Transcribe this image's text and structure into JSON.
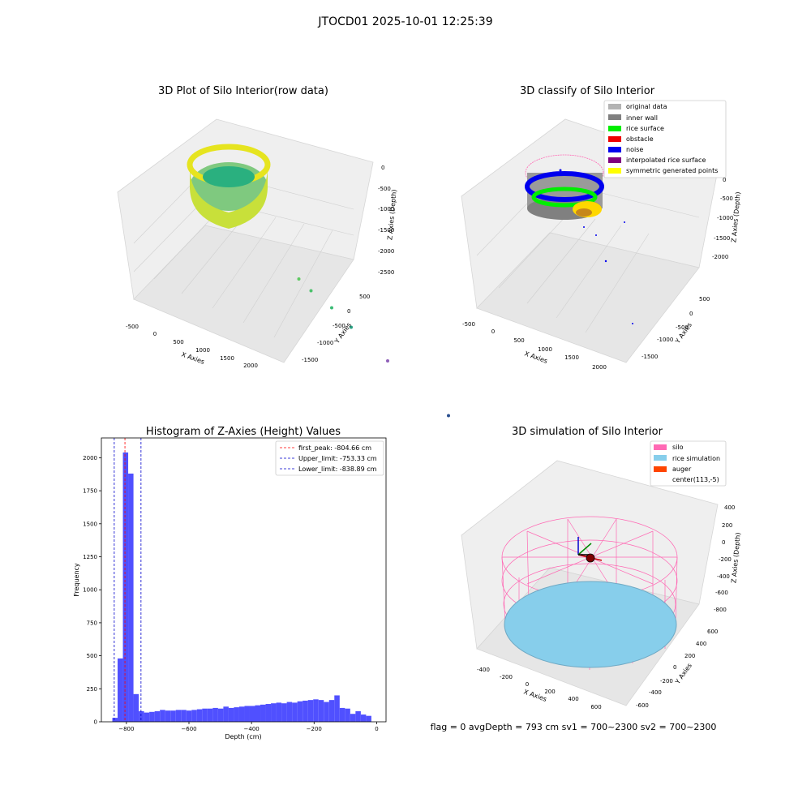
{
  "figure": {
    "suptitle": "JTOCD01 2025-10-01 12:25:39",
    "footer": "flag = 0     avgDepth = 793 cm  sv1 = 700~2300  sv2 = 700~2300"
  },
  "colors": {
    "original": "#b3b3b3",
    "inner_wall": "#808080",
    "rice_surface": "#00ee00",
    "obstacle": "#ee0000",
    "noise": "#0000ee",
    "interpolated": "#800080",
    "symmetric": "#ffff00",
    "hist_bar": "#5050ff",
    "silo": "#ff69b4",
    "rice_sim": "#87ceeb",
    "auger": "#ff4500"
  },
  "chart_data": [
    {
      "type": "scatter",
      "title": "3D Plot of Silo Interior(row data)",
      "xlabel": "X Axies",
      "ylabel": "Y Axies",
      "zlabel": "Z Axies (Depth)",
      "xticks": [
        "-500",
        "0",
        "500",
        "1000",
        "1500",
        "2000"
      ],
      "yticks": [
        "500",
        "0",
        "-500",
        "-1000",
        "-1500"
      ],
      "zticks": [
        "0",
        "-500",
        "-1000",
        "-1500",
        "-2000",
        "-2500"
      ],
      "grid": true,
      "points": [
        {
          "x": 1000,
          "y": 50,
          "z": -1080
        },
        {
          "x": 950,
          "y": -150,
          "z": -1150
        },
        {
          "x": 1000,
          "y": -400,
          "z": -1250
        },
        {
          "x": 1100,
          "y": -600,
          "z": -1450
        },
        {
          "x": 1400,
          "y": -900,
          "z": -1800
        },
        {
          "x": 1900,
          "y": -1400,
          "z": -2350
        }
      ]
    },
    {
      "type": "scatter",
      "title": "3D classify of Silo Interior",
      "xlabel": "X Axies",
      "ylabel": "Y Axies",
      "zlabel": "Z Axies (Depth)",
      "xticks": [
        "-500",
        "0",
        "500",
        "1000",
        "1500",
        "2000"
      ],
      "yticks": [
        "500",
        "0",
        "-500",
        "-1000",
        "-1500"
      ],
      "zticks": [
        "0",
        "-500",
        "-1000",
        "-1500",
        "-2000"
      ],
      "grid": true,
      "legend_position": "top-right",
      "legend": [
        "original data",
        "inner wall",
        "rice surface",
        "obstacle",
        "noise",
        "interpolated rice surface",
        "symmetric generated points"
      ]
    },
    {
      "type": "bar",
      "title": "Histogram of Z-Axies (Height) Values",
      "xlabel": "Depth (cm)",
      "ylabel": "Frequency",
      "xlim": [
        -880,
        30
      ],
      "ylim": [
        0,
        2150
      ],
      "xticks": [
        -800,
        -600,
        -400,
        -200,
        0
      ],
      "yticks": [
        0,
        250,
        500,
        750,
        1000,
        1250,
        1500,
        1750,
        2000
      ],
      "bin_start": -845,
      "bin_width": 16.9,
      "values": [
        30,
        480,
        2040,
        1880,
        210,
        80,
        70,
        75,
        80,
        90,
        85,
        85,
        90,
        90,
        85,
        90,
        95,
        100,
        100,
        105,
        100,
        115,
        105,
        110,
        115,
        120,
        120,
        125,
        130,
        135,
        140,
        145,
        140,
        150,
        145,
        155,
        160,
        165,
        170,
        165,
        150,
        165,
        200,
        105,
        100,
        60,
        80,
        55,
        45
      ],
      "vlines": [
        {
          "value": -804.66,
          "label": "first_peak: -804.66 cm",
          "color": "#ff0000"
        },
        {
          "value": -753.33,
          "label": "Upper_limit: -753.33 cm",
          "color": "#0000cc"
        },
        {
          "value": -838.89,
          "label": "Lower_limit: -838.89 cm",
          "color": "#0000cc"
        }
      ],
      "legend_position": "top-right"
    },
    {
      "type": "area",
      "title": "3D simulation of Silo Interior",
      "xlabel": "X Axies",
      "ylabel": "Y Axies",
      "zlabel": "Z Axies (Depth)",
      "xticks": [
        "-400",
        "-200",
        "0",
        "200",
        "400",
        "600"
      ],
      "yticks": [
        "600",
        "400",
        "200",
        "0",
        "-200",
        "-400",
        "-600"
      ],
      "zticks": [
        "400",
        "200",
        "0",
        "-200",
        "-400",
        "-600",
        "-800"
      ],
      "grid": true,
      "legend_position": "top-right",
      "legend": [
        "silo",
        "rice simulation",
        "auger",
        "center(113,-5)"
      ]
    }
  ]
}
